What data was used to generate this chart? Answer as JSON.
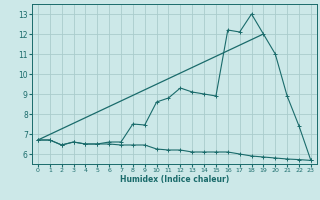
{
  "xlabel": "Humidex (Indice chaleur)",
  "background_color": "#cce8e8",
  "grid_color": "#aacccc",
  "line_color": "#1a6b6b",
  "xlim": [
    -0.5,
    23.5
  ],
  "ylim": [
    5.5,
    13.5
  ],
  "xticks": [
    0,
    1,
    2,
    3,
    4,
    5,
    6,
    7,
    8,
    9,
    10,
    11,
    12,
    13,
    14,
    15,
    16,
    17,
    18,
    19,
    20,
    21,
    22,
    23
  ],
  "yticks": [
    6,
    7,
    8,
    9,
    10,
    11,
    12,
    13
  ],
  "line1_x": [
    0,
    1,
    2,
    3,
    4,
    5,
    6,
    7,
    8,
    9,
    10,
    11,
    12,
    13,
    14,
    15,
    16,
    17,
    18,
    19,
    20,
    21,
    22,
    23
  ],
  "line1_y": [
    6.7,
    6.7,
    6.45,
    6.6,
    6.5,
    6.5,
    6.5,
    6.45,
    6.45,
    6.45,
    6.25,
    6.2,
    6.2,
    6.1,
    6.1,
    6.1,
    6.1,
    6.0,
    5.9,
    5.85,
    5.8,
    5.75,
    5.72,
    5.68
  ],
  "line2_x": [
    0,
    1,
    2,
    3,
    4,
    5,
    6,
    7,
    8,
    9,
    10,
    11,
    12,
    13,
    14,
    15,
    16,
    17,
    18,
    19,
    20,
    21,
    22,
    23
  ],
  "line2_y": [
    6.7,
    6.7,
    6.45,
    6.6,
    6.5,
    6.5,
    6.6,
    6.6,
    7.5,
    7.45,
    8.6,
    8.8,
    9.3,
    9.1,
    9.0,
    8.9,
    12.2,
    12.1,
    13.0,
    12.0,
    11.0,
    8.9,
    7.4,
    5.68
  ],
  "line3_x": [
    0,
    19
  ],
  "line3_y": [
    6.7,
    12.0
  ]
}
